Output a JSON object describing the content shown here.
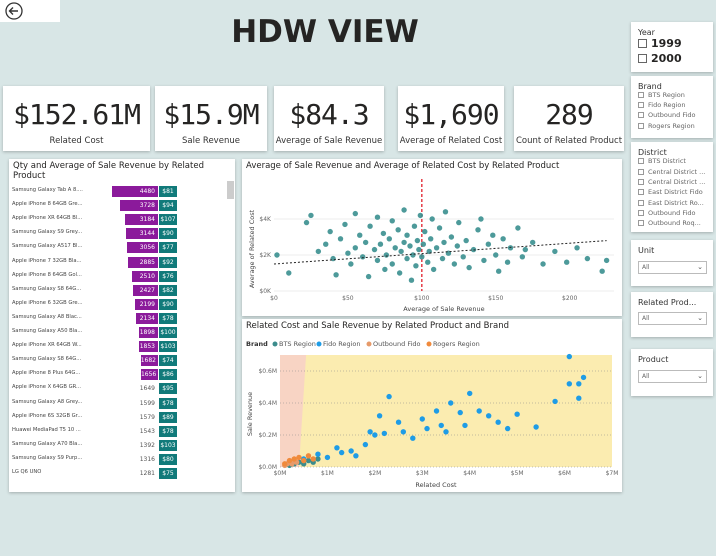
{
  "title": "HDW VIEW",
  "kpis": [
    {
      "value": "$152.61M",
      "label": "Related Cost"
    },
    {
      "value": "$15.9M",
      "label": "Sale Revenue"
    },
    {
      "value": "$84.3",
      "label": "Average of Sale Revenue"
    },
    {
      "value": "$1,690",
      "label": "Average of Related Cost"
    },
    {
      "value": "289",
      "label": "Count of Related Product"
    }
  ],
  "slicers": {
    "year": {
      "title": "Year",
      "options": [
        "1999",
        "2000"
      ]
    },
    "brand": {
      "title": "Brand",
      "options": [
        "BTS Region",
        "Fido Region",
        "Outbound Fido",
        "Rogers Region"
      ]
    },
    "district": {
      "title": "District",
      "options": [
        "BTS District",
        "Central District ...",
        "Central District ...",
        "East District  Fido",
        "East District  Ro...",
        "Outbound Fido",
        "Outbound  Roq..."
      ]
    },
    "unit": {
      "title": "Unit",
      "value": "All"
    },
    "related_product": {
      "title": "Related Prod...",
      "value": "All"
    },
    "product": {
      "title": "Product",
      "value": "All"
    }
  },
  "bar_chart": {
    "title_line1": "Qty and Average of Sale Revenue by Related",
    "title_line2": "Product",
    "rows": [
      {
        "product": "Samsung Galaxy Tab A 8....",
        "qty": 4480,
        "qty_label": "4480",
        "avg": "$81"
      },
      {
        "product": "Apple iPhone 8 64GB Gre...",
        "qty": 3728,
        "qty_label": "3728",
        "avg": "$94"
      },
      {
        "product": "Apple iPhone XR 64GB Bl...",
        "qty": 3184,
        "qty_label": "3184",
        "avg": "$107"
      },
      {
        "product": "Samsung Galaxy S9 Grey...",
        "qty": 3144,
        "qty_label": "3144",
        "avg": "$90"
      },
      {
        "product": "Samsung Galaxy A517 Bl...",
        "qty": 3056,
        "qty_label": "3056",
        "avg": "$77"
      },
      {
        "product": "Apple iPhone 7 32GB Bla...",
        "qty": 2885,
        "qty_label": "2885",
        "avg": "$92"
      },
      {
        "product": "Apple iPhone 8 64GB Gol...",
        "qty": 2510,
        "qty_label": "2510",
        "avg": "$76"
      },
      {
        "product": "Samsung Galaxy S8 64G...",
        "qty": 2427,
        "qty_label": "2427",
        "avg": "$82"
      },
      {
        "product": "Apple iPhone 6 32GB Gre...",
        "qty": 2199,
        "qty_label": "2199",
        "avg": "$90"
      },
      {
        "product": "Samsung Galaxy A8 Blac...",
        "qty": 2134,
        "qty_label": "2134",
        "avg": "$78"
      },
      {
        "product": "Samsung Galaxy A50 Bla...",
        "qty": 1898,
        "qty_label": "1898",
        "avg": "$100"
      },
      {
        "product": "Apple iPhone XR 64GB W...",
        "qty": 1853,
        "qty_label": "1853",
        "avg": "$103"
      },
      {
        "product": "Samsung Galaxy S8 64G...",
        "qty": 1682,
        "qty_label": "1682",
        "avg": "$74"
      },
      {
        "product": "Apple iPhone 8 Plus 64G...",
        "qty": 1656,
        "qty_label": "1656",
        "avg": "$86"
      },
      {
        "product": "Apple iPhone X 64GB GR...",
        "qty": 1649,
        "qty_label": "1649",
        "avg": "$95"
      },
      {
        "product": "Samsung Galaxy A8 Grey...",
        "qty": 1599,
        "qty_label": "1599",
        "avg": "$78"
      },
      {
        "product": "Apple iPhone 6S 32GB Gr...",
        "qty": 1579,
        "qty_label": "1579",
        "avg": "$89"
      },
      {
        "product": "Huawei MediaPad T5 10 ...",
        "qty": 1543,
        "qty_label": "1543",
        "avg": "$78"
      },
      {
        "product": "Samsung Galaxy A70 Bla...",
        "qty": 1392,
        "qty_label": "1392",
        "avg": "$103"
      },
      {
        "product": "Samsung Galaxy S9 Purp...",
        "qty": 1316,
        "qty_label": "1316",
        "avg": "$80"
      },
      {
        "product": "LG Q6 UNO",
        "qty": 1281,
        "qty_label": "1281",
        "avg": "$75"
      }
    ]
  },
  "scatter1": {
    "title": "Average of Sale Revenue and Average of Related Cost by Related Product",
    "xlabel": "Average of Sale Revenue",
    "ylabel": "Average of Related Cost",
    "xticks": [
      "$0",
      "$50",
      "$100",
      "$150",
      "$200"
    ],
    "yticks": [
      "$0K",
      "$2K",
      "$4K"
    ]
  },
  "scatter2": {
    "title": "Related Cost and Sale Revenue by Related Product and Brand",
    "legend_title": "Brand",
    "legend": [
      {
        "name": "BTS Region",
        "color": "#3c8c8c"
      },
      {
        "name": "Fido Region",
        "color": "#1e9ce6"
      },
      {
        "name": "Outbound Fido",
        "color": "#e69a6a"
      },
      {
        "name": "Rogers Region",
        "color": "#f08a3c"
      }
    ],
    "xlabel": "Related Cost",
    "ylabel": "Sale Revenue",
    "xticks": [
      "$0M",
      "$1M",
      "$2M",
      "$3M",
      "$4M",
      "$5M",
      "$6M",
      "$7M"
    ],
    "yticks": [
      "$0.0M",
      "$0.2M",
      "$0.4M",
      "$0.6M"
    ]
  },
  "chart_data": [
    {
      "type": "bar",
      "categories": [
        "Samsung Galaxy Tab A 8....",
        "Apple iPhone 8 64GB Gre...",
        "Apple iPhone XR 64GB Bl...",
        "Samsung Galaxy S9 Grey...",
        "Samsung Galaxy A517 Bl...",
        "Apple iPhone 7 32GB Bla...",
        "Apple iPhone 8 64GB Gol...",
        "Samsung Galaxy S8 64G...",
        "Apple iPhone 6 32GB Gre...",
        "Samsung Galaxy A8 Blac...",
        "Samsung Galaxy A50 Bla...",
        "Apple iPhone XR 64GB W...",
        "Samsung Galaxy S8 64G...",
        "Apple iPhone 8 Plus 64G...",
        "Apple iPhone X 64GB GR...",
        "Samsung Galaxy A8 Grey...",
        "Apple iPhone 6S 32GB Gr...",
        "Huawei MediaPad T5 10 ...",
        "Samsung Galaxy A70 Bla...",
        "Samsung Galaxy S9 Purp...",
        "LG Q6 UNO"
      ],
      "series": [
        {
          "name": "Qty",
          "values": [
            4480,
            3728,
            3184,
            3144,
            3056,
            2885,
            2510,
            2427,
            2199,
            2134,
            1898,
            1853,
            1682,
            1656,
            1649,
            1599,
            1579,
            1543,
            1392,
            1316,
            1281
          ]
        },
        {
          "name": "Average of Sale Revenue",
          "values": [
            81,
            94,
            107,
            90,
            77,
            92,
            76,
            82,
            90,
            78,
            100,
            103,
            74,
            86,
            95,
            78,
            89,
            78,
            103,
            80,
            75
          ]
        }
      ],
      "title": "Qty and Average of Sale Revenue by Related Product"
    },
    {
      "type": "scatter",
      "title": "Average of Sale Revenue and Average of Related Cost by Related Product",
      "xlabel": "Average of Sale Revenue",
      "ylabel": "Average of Related Cost",
      "xlim": [
        0,
        230
      ],
      "ylim": [
        0,
        5000
      ],
      "trend_line": [
        [
          0,
          1500
        ],
        [
          225,
          2800
        ]
      ],
      "reference_x": 100,
      "points": [
        [
          2,
          2000
        ],
        [
          10,
          1000
        ],
        [
          22,
          3800
        ],
        [
          25,
          4200
        ],
        [
          30,
          2200
        ],
        [
          35,
          2600
        ],
        [
          38,
          3300
        ],
        [
          40,
          1800
        ],
        [
          42,
          900
        ],
        [
          45,
          2900
        ],
        [
          48,
          3700
        ],
        [
          50,
          2100
        ],
        [
          52,
          1500
        ],
        [
          55,
          2400
        ],
        [
          55,
          4300
        ],
        [
          58,
          3100
        ],
        [
          60,
          1900
        ],
        [
          62,
          2700
        ],
        [
          64,
          800
        ],
        [
          65,
          3600
        ],
        [
          68,
          2300
        ],
        [
          70,
          1700
        ],
        [
          70,
          4100
        ],
        [
          72,
          2600
        ],
        [
          74,
          3200
        ],
        [
          75,
          1200
        ],
        [
          76,
          2000
        ],
        [
          78,
          2900
        ],
        [
          80,
          3900
        ],
        [
          80,
          1500
        ],
        [
          82,
          2400
        ],
        [
          84,
          3400
        ],
        [
          85,
          1000
        ],
        [
          86,
          2200
        ],
        [
          88,
          2700
        ],
        [
          88,
          4500
        ],
        [
          90,
          1800
        ],
        [
          90,
          3100
        ],
        [
          92,
          2500
        ],
        [
          93,
          600
        ],
        [
          94,
          2000
        ],
        [
          95,
          3600
        ],
        [
          96,
          1400
        ],
        [
          97,
          2800
        ],
        [
          98,
          2300
        ],
        [
          99,
          4200
        ],
        [
          100,
          1900
        ],
        [
          101,
          2600
        ],
        [
          102,
          3300
        ],
        [
          104,
          1600
        ],
        [
          105,
          2200
        ],
        [
          106,
          2900
        ],
        [
          107,
          4000
        ],
        [
          108,
          1200
        ],
        [
          110,
          2400
        ],
        [
          112,
          3500
        ],
        [
          114,
          1800
        ],
        [
          115,
          2700
        ],
        [
          116,
          4400
        ],
        [
          118,
          2100
        ],
        [
          120,
          3000
        ],
        [
          122,
          1500
        ],
        [
          124,
          2500
        ],
        [
          125,
          3800
        ],
        [
          128,
          1900
        ],
        [
          130,
          2800
        ],
        [
          132,
          1300
        ],
        [
          135,
          2300
        ],
        [
          138,
          3400
        ],
        [
          140,
          4000
        ],
        [
          142,
          1700
        ],
        [
          145,
          2600
        ],
        [
          148,
          3100
        ],
        [
          150,
          2000
        ],
        [
          152,
          1100
        ],
        [
          155,
          2900
        ],
        [
          158,
          1600
        ],
        [
          160,
          2400
        ],
        [
          165,
          3500
        ],
        [
          168,
          1900
        ],
        [
          170,
          2300
        ],
        [
          175,
          2700
        ],
        [
          182,
          1500
        ],
        [
          190,
          2200
        ],
        [
          198,
          1600
        ],
        [
          205,
          2400
        ],
        [
          212,
          1800
        ],
        [
          222,
          1100
        ],
        [
          225,
          1700
        ]
      ]
    },
    {
      "type": "scatter",
      "title": "Related Cost and Sale Revenue by Related Product and Brand",
      "xlabel": "Related Cost",
      "ylabel": "Sale Revenue",
      "xlim": [
        0,
        7
      ],
      "ylim": [
        0,
        0.7
      ],
      "series": [
        {
          "name": "BTS Region",
          "points": [
            [
              0.2,
              0.01
            ],
            [
              0.3,
              0.02
            ],
            [
              0.4,
              0.03
            ],
            [
              0.5,
              0.02
            ],
            [
              0.6,
              0.04
            ],
            [
              0.7,
              0.03
            ],
            [
              0.8,
              0.05
            ]
          ]
        },
        {
          "name": "Fido Region",
          "points": [
            [
              0.5,
              0.05
            ],
            [
              0.8,
              0.08
            ],
            [
              1.0,
              0.06
            ],
            [
              1.2,
              0.12
            ],
            [
              1.3,
              0.09
            ],
            [
              1.5,
              0.1
            ],
            [
              1.6,
              0.07
            ],
            [
              1.8,
              0.14
            ],
            [
              1.9,
              0.22
            ],
            [
              2.0,
              0.2
            ],
            [
              2.1,
              0.32
            ],
            [
              2.2,
              0.21
            ],
            [
              2.3,
              0.44
            ],
            [
              2.5,
              0.28
            ],
            [
              2.6,
              0.22
            ],
            [
              2.8,
              0.18
            ],
            [
              3.0,
              0.3
            ],
            [
              3.1,
              0.24
            ],
            [
              3.3,
              0.35
            ],
            [
              3.4,
              0.26
            ],
            [
              3.5,
              0.22
            ],
            [
              3.6,
              0.4
            ],
            [
              3.8,
              0.34
            ],
            [
              3.9,
              0.26
            ],
            [
              4.0,
              0.46
            ],
            [
              4.2,
              0.35
            ],
            [
              4.4,
              0.32
            ],
            [
              4.6,
              0.28
            ],
            [
              4.8,
              0.24
            ],
            [
              5.0,
              0.33
            ],
            [
              5.4,
              0.25
            ],
            [
              5.8,
              0.41
            ],
            [
              6.1,
              0.52
            ],
            [
              6.1,
              0.69
            ],
            [
              6.3,
              0.52
            ],
            [
              6.3,
              0.43
            ],
            [
              6.4,
              0.56
            ]
          ]
        },
        {
          "name": "Outbound Fido",
          "points": [
            [
              0.1,
              0.01
            ],
            [
              0.15,
              0.02
            ],
            [
              0.2,
              0.03
            ],
            [
              0.25,
              0.02
            ],
            [
              0.3,
              0.04
            ],
            [
              0.35,
              0.03
            ]
          ]
        },
        {
          "name": "Rogers Region",
          "points": [
            [
              0.1,
              0.02
            ],
            [
              0.2,
              0.04
            ],
            [
              0.3,
              0.05
            ],
            [
              0.4,
              0.06
            ],
            [
              0.5,
              0.04
            ],
            [
              0.6,
              0.07
            ],
            [
              0.7,
              0.05
            ]
          ]
        }
      ]
    }
  ]
}
